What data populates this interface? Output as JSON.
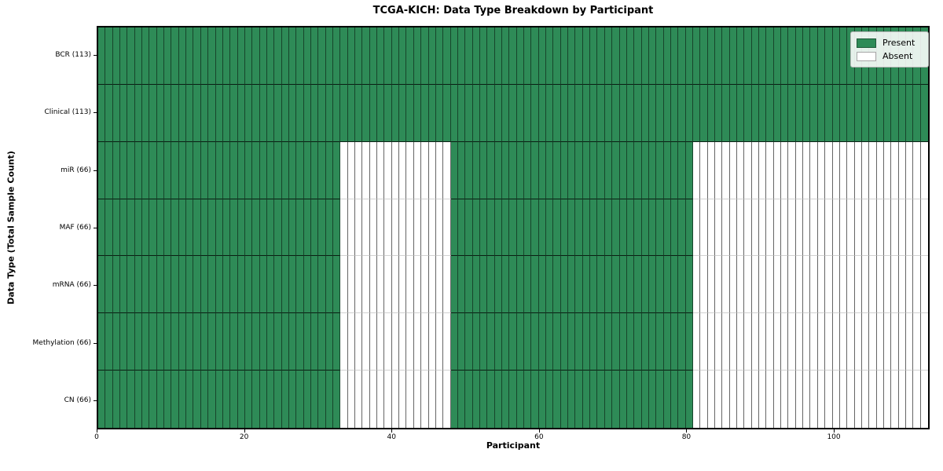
{
  "title": "TCGA-KICH: Data Type Breakdown by Participant",
  "xlabel": "Participant",
  "ylabel": "Data Type (Total Sample Count)",
  "colors": {
    "present": "#2e8b57",
    "absent": "#ffffff",
    "spine": "#000000",
    "legend_border": "#b6b6b6"
  },
  "legend": [
    {
      "label": "Present",
      "color": "#2e8b57"
    },
    {
      "label": "Absent",
      "color": "#ffffff"
    }
  ],
  "chart_data": {
    "type": "heatmap",
    "title": "TCGA-KICH: Data Type Breakdown by Participant",
    "xlabel": "Participant",
    "ylabel": "Data Type (Total Sample Count)",
    "x_range": [
      0,
      113
    ],
    "x_ticks": [
      0,
      20,
      40,
      60,
      80,
      100
    ],
    "participants_total": 113,
    "legend_entries": [
      "Present",
      "Absent"
    ],
    "legend_position": "upper right",
    "rows": [
      {
        "label": "BCR (113)",
        "total": 113,
        "present_segments": [
          [
            0,
            113
          ]
        ]
      },
      {
        "label": "Clinical (113)",
        "total": 113,
        "present_segments": [
          [
            0,
            113
          ]
        ]
      },
      {
        "label": "miR (66)",
        "total": 66,
        "present_segments": [
          [
            0,
            33
          ],
          [
            48,
            81
          ]
        ]
      },
      {
        "label": "MAF (66)",
        "total": 66,
        "present_segments": [
          [
            0,
            33
          ],
          [
            48,
            81
          ]
        ]
      },
      {
        "label": "mRNA (66)",
        "total": 66,
        "present_segments": [
          [
            0,
            33
          ],
          [
            48,
            81
          ]
        ]
      },
      {
        "label": "Methylation (66)",
        "total": 66,
        "present_segments": [
          [
            0,
            33
          ],
          [
            48,
            81
          ]
        ]
      },
      {
        "label": "CN (66)",
        "total": 66,
        "present_segments": [
          [
            0,
            33
          ],
          [
            48,
            81
          ]
        ]
      }
    ]
  }
}
